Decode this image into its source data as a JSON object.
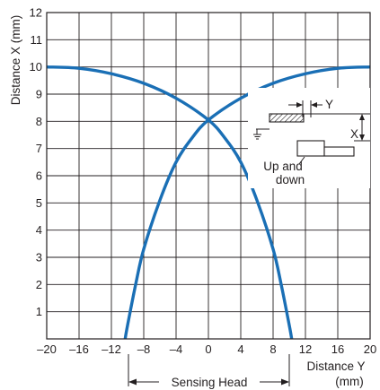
{
  "chart_data": {
    "type": "line",
    "title": "",
    "xlabel": "Distance Y",
    "xlabel_unit": "(mm)",
    "ylabel": "Distance X (mm)",
    "xlim": [
      -20,
      20
    ],
    "ylim": [
      0,
      12
    ],
    "x_ticks": [
      -20,
      -16,
      -12,
      -8,
      -4,
      0,
      4,
      8,
      12,
      16,
      20
    ],
    "y_ticks": [
      1,
      2,
      3,
      4,
      5,
      6,
      7,
      8,
      9,
      10,
      11,
      12
    ],
    "grid": true,
    "series_color": "#1a6fb5",
    "series": [
      {
        "points": [
          [
            -20,
            10.0
          ],
          [
            -16,
            9.95
          ],
          [
            -12,
            9.75
          ],
          [
            -8,
            9.4
          ],
          [
            -4,
            8.85
          ],
          [
            0,
            8.05
          ],
          [
            2,
            7.4
          ],
          [
            4,
            6.5
          ],
          [
            6,
            5.1
          ],
          [
            8,
            3.3
          ],
          [
            9,
            2.0
          ],
          [
            10,
            0.5
          ],
          [
            10.3,
            0
          ]
        ]
      },
      {
        "points": [
          [
            20,
            10.0
          ],
          [
            16,
            9.95
          ],
          [
            12,
            9.75
          ],
          [
            8,
            9.4
          ],
          [
            4,
            8.85
          ],
          [
            0,
            8.05
          ],
          [
            -2,
            7.4
          ],
          [
            -4,
            6.5
          ],
          [
            -6,
            5.1
          ],
          [
            -8,
            3.3
          ],
          [
            -9,
            2.0
          ],
          [
            -10,
            0.5
          ],
          [
            -10.3,
            0
          ]
        ]
      }
    ],
    "annotations": {
      "sensing_head_label": "Sensing Head",
      "sensing_head_range": [
        -10,
        10
      ],
      "inset_y_label": "Y",
      "inset_x_label": "X",
      "inset_motion_label_1": "Up and",
      "inset_motion_label_2": "down"
    }
  }
}
